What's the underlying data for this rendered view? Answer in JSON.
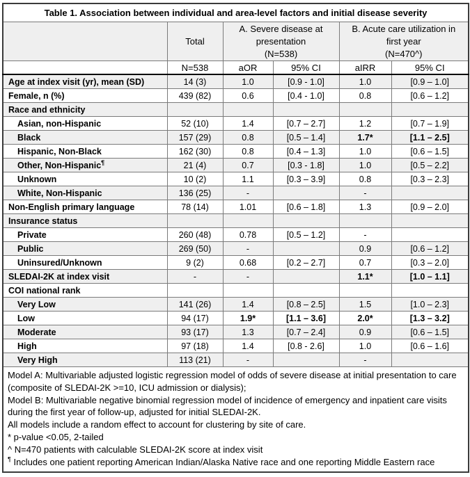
{
  "title": "Table 1. Association between individual and area-level factors and initial disease severity",
  "header": {
    "total": "Total",
    "model_a": "A. Severe disease at\npresentation\n(N=538)",
    "model_b": "B. Acute care utilization in\nfirst year\n(N=470^)",
    "n": "N=538",
    "aor": "aOR",
    "ci_a": "95% CI",
    "airr": "aIRR",
    "ci_b": "95% CI"
  },
  "colors": {
    "stripe_gray": "#efefef",
    "grid_line": "#7a7a7a",
    "heavy_line": "#000000"
  },
  "rows": [
    {
      "label": "Age at index visit (yr), mean (SD)",
      "cells": [
        "14 (3)",
        "1.0",
        "[0.9 - 1.0]",
        "1.0",
        "[0.9 – 1.0]"
      ]
    },
    {
      "label": "Female, n (%)",
      "cells": [
        "439 (82)",
        "0.6",
        "[0.4 - 1.0]",
        "0.8",
        "[0.6 – 1.2]"
      ]
    },
    {
      "label": "Race and ethnicity",
      "cells": [
        "",
        "",
        "",
        "",
        ""
      ]
    },
    {
      "label": "Asian, non-Hispanic",
      "indent": true,
      "cells": [
        "52 (10)",
        "1.4",
        "[0.7 – 2.7]",
        "1.2",
        "[0.7 – 1.9]"
      ]
    },
    {
      "label": "Black",
      "indent": true,
      "cells": [
        "157 (29)",
        "0.8",
        "[0.5 – 1.4]",
        "1.7*",
        "[1.1 – 2.5]"
      ],
      "bold": [
        3,
        4
      ]
    },
    {
      "label": "Hispanic, Non-Black",
      "indent": true,
      "cells": [
        "162 (30)",
        "0.8",
        "[0.4 – 1.3]",
        "1.0",
        "[0.6 – 1.5]"
      ]
    },
    {
      "label": "Other, Non-Hispanic",
      "sup": "¶",
      "indent": true,
      "cells": [
        "21 (4)",
        "0.7",
        "[0.3 - 1.8]",
        "1.0",
        "[0.5 – 2.2]"
      ]
    },
    {
      "label": "Unknown",
      "indent": true,
      "cells": [
        "10 (2)",
        "1.1",
        "[0.3 – 3.9]",
        "0.8",
        "[0.3 – 2.3]"
      ]
    },
    {
      "label": "White, Non-Hispanic",
      "indent": true,
      "cells": [
        "136 (25)",
        "-",
        "",
        "-",
        ""
      ]
    },
    {
      "label": "Non-English primary language",
      "cells": [
        "78 (14)",
        "1.01",
        "[0.6 – 1.8]",
        "1.3",
        "[0.9 – 2.0]"
      ]
    },
    {
      "label": "Insurance status",
      "cells": [
        "",
        "",
        "",
        "",
        ""
      ]
    },
    {
      "label": "Private",
      "indent": true,
      "cells": [
        "260 (48)",
        "0.78",
        "[0.5 – 1.2]",
        "-",
        ""
      ]
    },
    {
      "label": "Public",
      "indent": true,
      "cells": [
        "269 (50)",
        "-",
        "",
        "0.9",
        "[0.6 – 1.2]"
      ]
    },
    {
      "label": "Uninsured/Unknown",
      "indent": true,
      "cells": [
        "9 (2)",
        "0.68",
        "[0.2 – 2.7]",
        "0.7",
        "[0.3 – 2.0]"
      ]
    },
    {
      "label": "SLEDAI-2K at index visit",
      "cells": [
        "-",
        "-",
        "",
        "1.1*",
        "[1.0 – 1.1]"
      ],
      "bold": [
        3,
        4
      ]
    },
    {
      "label": "COI national rank",
      "cells": [
        "",
        "",
        "",
        "",
        ""
      ]
    },
    {
      "label": "Very Low",
      "indent": true,
      "cells": [
        "141 (26)",
        "1.4",
        "[0.8 – 2.5]",
        "1.5",
        "[1.0 – 2.3]"
      ]
    },
    {
      "label": "Low",
      "indent": true,
      "cells": [
        "94 (17)",
        "1.9*",
        "[1.1 – 3.6]",
        "2.0*",
        "[1.3 – 3.2]"
      ],
      "bold": [
        1,
        2,
        3,
        4
      ]
    },
    {
      "label": "Moderate",
      "indent": true,
      "cells": [
        "93 (17)",
        "1.3",
        "[0.7 – 2.4]",
        "0.9",
        "[0.6 – 1.5]"
      ]
    },
    {
      "label": "High",
      "indent": true,
      "cells": [
        "97 (18)",
        "1.4",
        "[0.8 - 2.6]",
        "1.0",
        "[0.6 – 1.6]"
      ]
    },
    {
      "label": "Very High",
      "indent": true,
      "cells": [
        "113 (21)",
        "-",
        "",
        "-",
        ""
      ]
    }
  ],
  "notes": [
    {
      "text": "Model A: Multivariable adjusted logistic regression model of odds of severe disease at initial presentation to care (composite of SLEDAI-2K >=10, ICU admission or dialysis);"
    },
    {
      "text": "Model B: Multivariable negative binomial regression model of incidence of emergency and inpatient care visits during the first year of follow-up, adjusted for initial SLEDAI-2K."
    },
    {
      "text": "All models include a random effect to account for clustering by site of care."
    },
    {
      "text": "* p-value <0.05, 2-tailed"
    },
    {
      "text": "^ N=470 patients with calculable SLEDAI-2K score at index visit"
    },
    {
      "sup": "¶",
      "text": "Includes one patient reporting American Indian/Alaska Native race and one reporting Middle Eastern race"
    }
  ]
}
